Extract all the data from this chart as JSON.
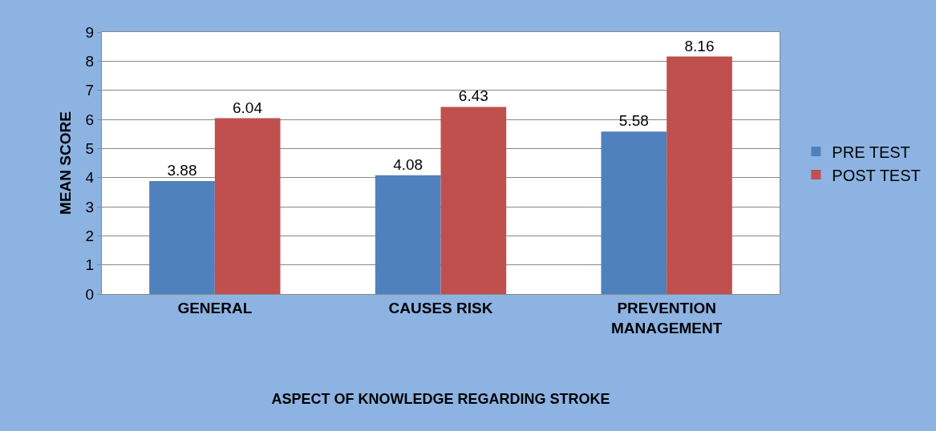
{
  "chart_data": {
    "type": "bar",
    "xlabel": "ASPECT OF KNOWLEDGE REGARDING STROKE",
    "ylabel": "MEAN SCORE",
    "categories": [
      "GENERAL",
      "CAUSES RISK",
      "PREVENTION MANAGEMENT"
    ],
    "series": [
      {
        "name": "PRE TEST",
        "color": "#4f81bd",
        "values": [
          3.88,
          4.08,
          5.58
        ]
      },
      {
        "name": "POST TEST",
        "color": "#c0504d",
        "values": [
          6.04,
          6.43,
          8.16
        ]
      }
    ],
    "ylim": [
      0,
      9
    ],
    "yticks": [
      0,
      1,
      2,
      3,
      4,
      5,
      6,
      7,
      8,
      9
    ],
    "grid": "y",
    "legend": "right",
    "data_labels": true
  }
}
